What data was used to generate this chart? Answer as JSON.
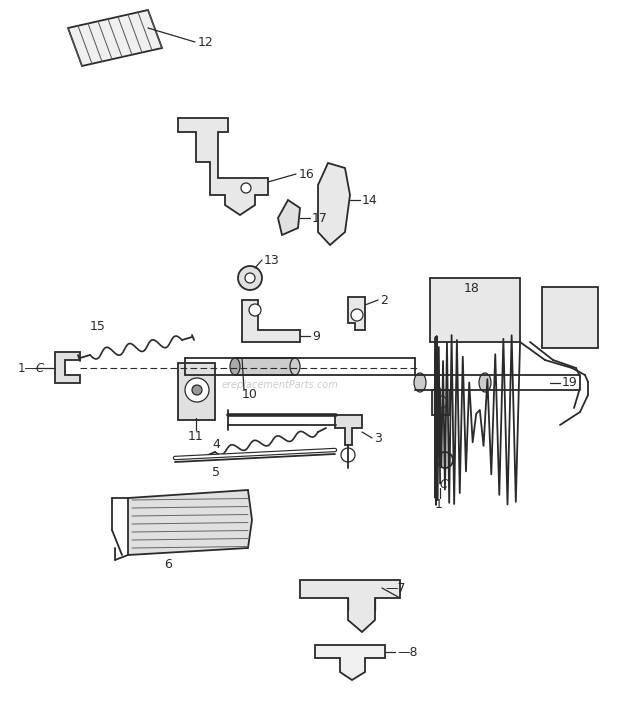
{
  "background_color": "#ffffff",
  "line_color": "#2a2a2a",
  "watermark": "ereplacementParts.com",
  "figsize": [
    6.2,
    7.27
  ],
  "dpi": 100,
  "xlim": [
    0,
    620
  ],
  "ylim": [
    0,
    727
  ]
}
